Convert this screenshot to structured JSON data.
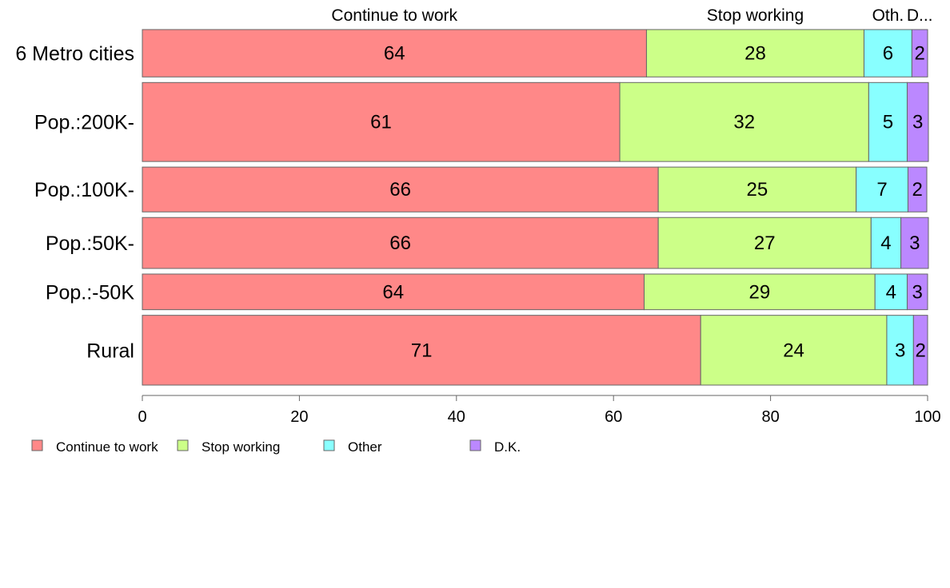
{
  "chart_data": {
    "type": "bar",
    "orientation": "horizontal",
    "stacked": true,
    "categories": [
      "6 Metro cities",
      "Pop.:200K-",
      "Pop.:100K-",
      "Pop.:50K-",
      "Pop.:-50K",
      "Rural"
    ],
    "category_weights": [
      0.93,
      1.55,
      0.88,
      1.0,
      0.7,
      1.37
    ],
    "series": [
      {
        "name": "Continue to work",
        "color": "#ff8888",
        "values": [
          64.2,
          60.8,
          65.7,
          65.7,
          63.9,
          71.1
        ]
      },
      {
        "name": "Stop working",
        "color": "#ccff88",
        "values": [
          27.7,
          31.7,
          25.2,
          27.1,
          29.4,
          23.7
        ]
      },
      {
        "name": "Other",
        "color": "#88ffff",
        "values": [
          6.1,
          4.9,
          6.6,
          3.8,
          4.1,
          3.4
        ]
      },
      {
        "name": "D.K.",
        "color": "#bb88ff",
        "values": [
          2.0,
          2.7,
          2.4,
          3.5,
          2.6,
          1.8
        ]
      }
    ],
    "value_labels": [
      [
        "64",
        "28",
        "6",
        "2"
      ],
      [
        "61",
        "32",
        "5",
        "3"
      ],
      [
        "66",
        "25",
        "7",
        "2"
      ],
      [
        "66",
        "27",
        "4",
        "3"
      ],
      [
        "64",
        "29",
        "4",
        "3"
      ],
      [
        "71",
        "24",
        "3",
        "2"
      ]
    ],
    "top_labels": [
      "Continue to work",
      "Stop working",
      "Oth.",
      "D..."
    ],
    "xlim": [
      0,
      100
    ],
    "xticks": [
      "0",
      "20",
      "40",
      "60",
      "80",
      "100"
    ],
    "grid": false,
    "legend_position": "bottom-left"
  }
}
